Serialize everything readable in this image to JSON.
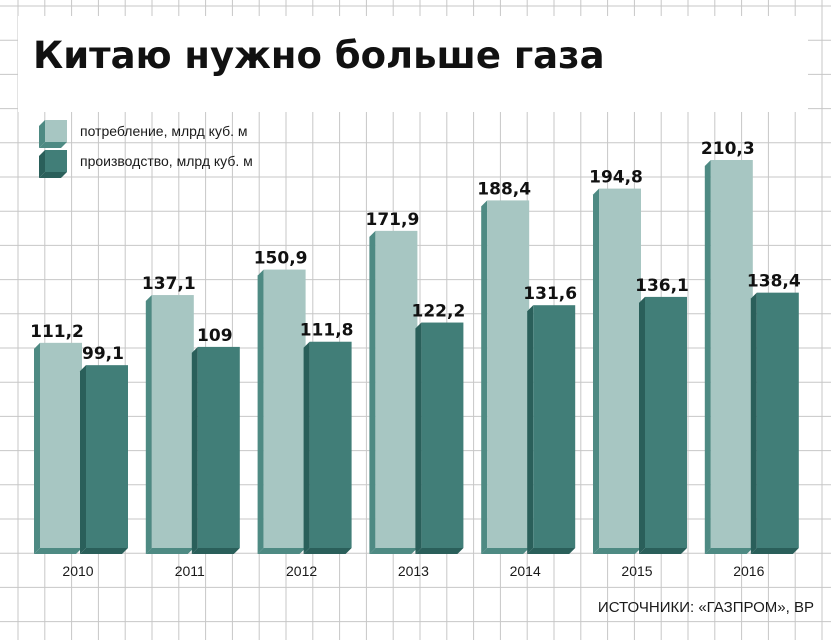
{
  "title": "Китаю нужно больше газа",
  "source": "ИСТОЧНИКИ: «ГАЗПРОМ», BP",
  "colors": {
    "consumption": "#a7c6c2",
    "consumption_dark": "#4e8a83",
    "production": "#417e78",
    "production_dark": "#2a5f5a",
    "grid": "#c7c7c7"
  },
  "chart_data": {
    "type": "bar",
    "title": "Китаю нужно больше газа",
    "categories": [
      "2010",
      "2011",
      "2012",
      "2013",
      "2014",
      "2015",
      "2016"
    ],
    "series": [
      {
        "name": "потребление, млрд куб. м",
        "values": [
          111.2,
          137.1,
          150.9,
          171.9,
          188.4,
          194.8,
          210.3
        ],
        "labels": [
          "111,2",
          "137,1",
          "150,9",
          "171,9",
          "188,4",
          "194,8",
          "210,3"
        ]
      },
      {
        "name": "производство, млрд куб. м",
        "values": [
          99.1,
          109,
          111.8,
          122.2,
          131.6,
          136.1,
          138.4
        ],
        "labels": [
          "99,1",
          "109",
          "111,8",
          "122,2",
          "131,6",
          "136,1",
          "138,4"
        ]
      }
    ],
    "ylim": [
      0,
      220
    ],
    "grid": true,
    "legend": "top-left"
  }
}
